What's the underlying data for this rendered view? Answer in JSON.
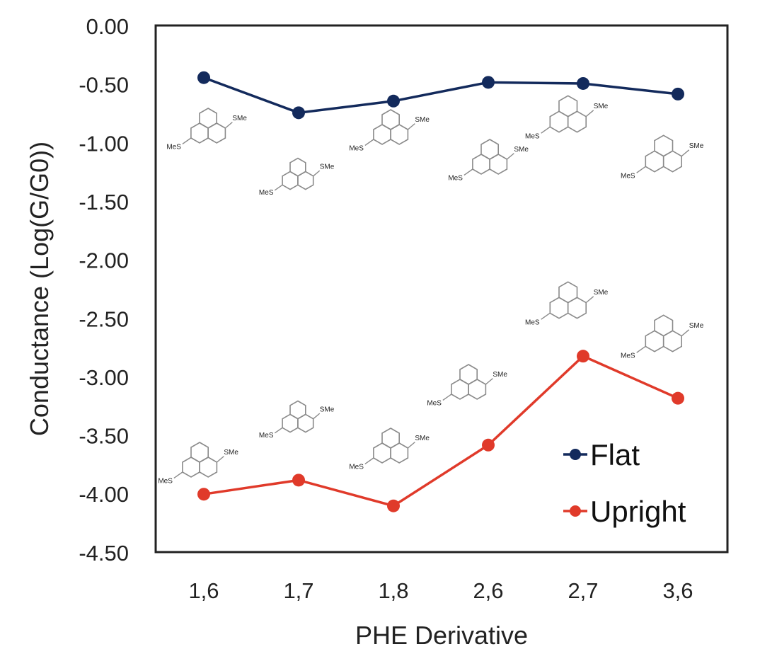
{
  "chart_data": {
    "type": "line",
    "title": "",
    "xlabel": "PHE Derivative",
    "ylabel": "Conductance (Log(G/G0))",
    "categories": [
      "1,6",
      "1,7",
      "1,8",
      "2,6",
      "2,7",
      "3,6"
    ],
    "ylim": [
      -4.5,
      0
    ],
    "yticks": [
      "0.00",
      "-0.50",
      "-1.00",
      "-1.50",
      "-2.00",
      "-2.50",
      "-3.00",
      "-3.50",
      "-4.00",
      "-4.50"
    ],
    "ytick_values": [
      0,
      -0.5,
      -1,
      -1.5,
      -2,
      -2.5,
      -3,
      -3.5,
      -4,
      -4.5
    ],
    "grid": false,
    "legend_position": "bottom-right",
    "series": [
      {
        "name": "Flat",
        "color": "#132a5c",
        "values": [
          -0.44,
          -0.74,
          -0.64,
          -0.48,
          -0.49,
          -0.58
        ]
      },
      {
        "name": "Upright",
        "color": "#e03a2a",
        "values": [
          -4.0,
          -3.88,
          -4.1,
          -3.58,
          -2.82,
          -3.18
        ]
      }
    ],
    "structure_labels": {
      "left": "MeS",
      "right": "SMe"
    }
  }
}
